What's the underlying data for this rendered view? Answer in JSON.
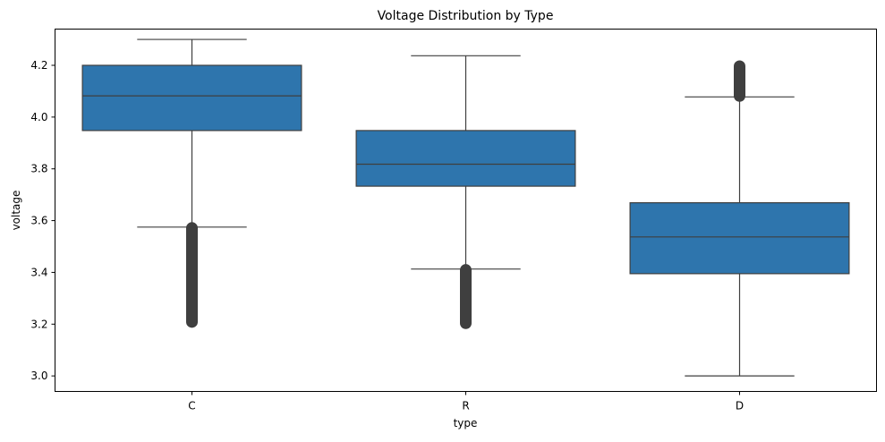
{
  "chart_data": {
    "type": "box",
    "title": "Voltage Distribution by Type",
    "xlabel": "type",
    "ylabel": "voltage",
    "categories": [
      "C",
      "R",
      "D"
    ],
    "ylim": [
      2.94,
      4.34
    ],
    "yticks": [
      3.0,
      3.2,
      3.4,
      3.6,
      3.8,
      4.0,
      4.2
    ],
    "ytick_labels": [
      "3.0",
      "3.2",
      "3.4",
      "3.6",
      "3.8",
      "4.0",
      "4.2"
    ],
    "grid": false,
    "color": "#2e75ad",
    "boxes": [
      {
        "category": "C",
        "whisker_low": 3.575,
        "q1": 3.948,
        "median": 4.082,
        "q3": 4.2,
        "whisker_high": 4.3,
        "outliers_range": [
          3.205,
          3.575
        ]
      },
      {
        "category": "R",
        "whisker_low": 3.413,
        "q1": 3.733,
        "median": 3.818,
        "q3": 3.948,
        "whisker_high": 4.237,
        "outliers_range": [
          3.2,
          3.413
        ]
      },
      {
        "category": "D",
        "whisker_low": 3.0,
        "q1": 3.395,
        "median": 3.537,
        "q3": 3.669,
        "whisker_high": 4.078,
        "outliers_range": [
          4.078,
          4.2
        ]
      }
    ]
  }
}
